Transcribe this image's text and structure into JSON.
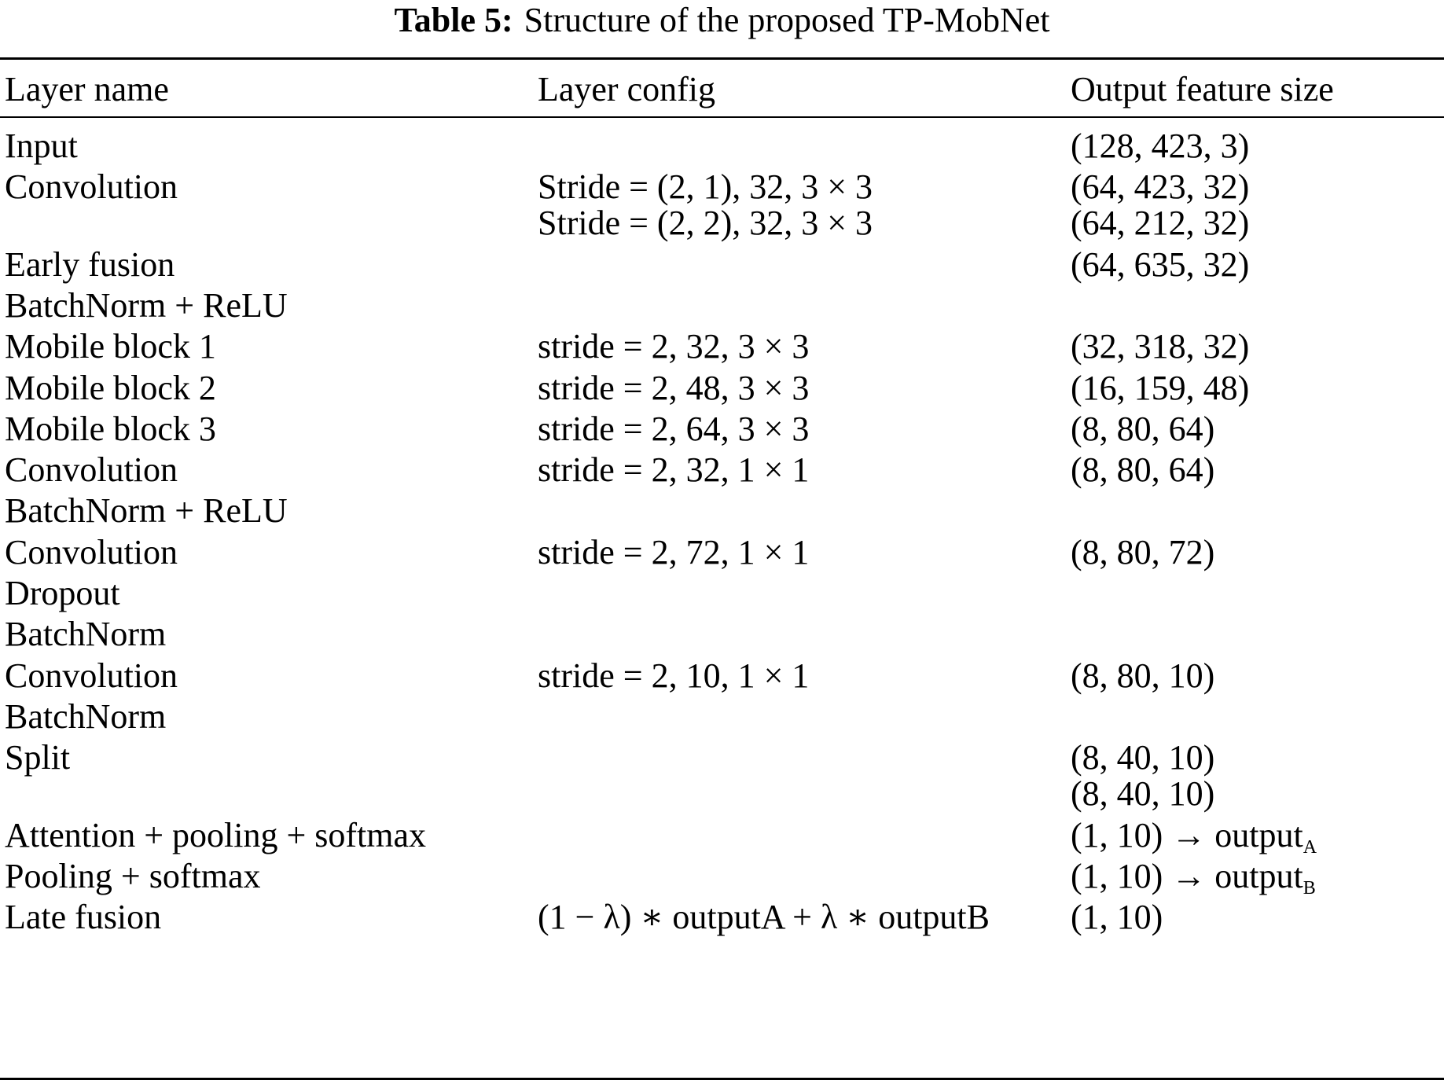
{
  "caption": {
    "label": "Table 5:",
    "title": "Structure of the proposed TP-MobNet"
  },
  "columns": [
    "Layer name",
    "Layer config",
    "Output feature size"
  ],
  "rows": [
    {
      "name": "Input",
      "config": "",
      "output": "(128, 423, 3)"
    },
    {
      "name": "Convolution",
      "config": "Stride = (2, 1), 32, 3 × 3",
      "output": "(64, 423, 32)"
    },
    {
      "name": "",
      "config": "Stride = (2, 2), 32, 3 × 3",
      "output": "(64, 212, 32)"
    },
    {
      "name": "Early fusion",
      "config": "",
      "output": "(64, 635, 32)"
    },
    {
      "name": "BatchNorm + ReLU",
      "config": "",
      "output": ""
    },
    {
      "name": "Mobile block 1",
      "config": "stride = 2, 32, 3 × 3",
      "output": "(32, 318, 32)"
    },
    {
      "name": "Mobile block 2",
      "config": "stride = 2, 48, 3 × 3",
      "output": "(16, 159, 48)"
    },
    {
      "name": "Mobile block 3",
      "config": "stride = 2, 64, 3 × 3",
      "output": "(8, 80, 64)"
    },
    {
      "name": "Convolution",
      "config": "stride = 2, 32, 1 × 1",
      "output": "(8, 80, 64)"
    },
    {
      "name": "BatchNorm + ReLU",
      "config": "",
      "output": ""
    },
    {
      "name": "Convolution",
      "config": "stride = 2, 72, 1 × 1",
      "output": "(8, 80, 72)"
    },
    {
      "name": "Dropout",
      "config": "",
      "output": ""
    },
    {
      "name": "BatchNorm",
      "config": "",
      "output": ""
    },
    {
      "name": "Convolution",
      "config": "stride = 2, 10, 1 × 1",
      "output": "(8, 80, 10)"
    },
    {
      "name": "BatchNorm",
      "config": "",
      "output": ""
    },
    {
      "name": "Split",
      "config": "",
      "output": "(8, 40, 10)"
    },
    {
      "name": "",
      "config": "",
      "output": "(8, 40, 10)"
    },
    {
      "name": "Attention + pooling + softmax",
      "config": "",
      "output": "(1, 10) → output",
      "output_sub": "A"
    },
    {
      "name": "Pooling + softmax",
      "config": "",
      "output": "(1, 10) → output",
      "output_sub": "B"
    },
    {
      "name": "Late fusion",
      "config": "(1 − λ) ∗ outputA + λ ∗ outputB",
      "output": "(1, 10)"
    }
  ]
}
